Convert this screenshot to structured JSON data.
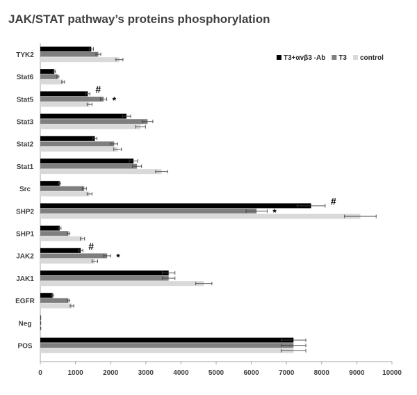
{
  "chart_data": {
    "type": "bar",
    "orientation": "horizontal",
    "title": "JAK/STAT pathway’s proteins phosphorylation",
    "xlabel": "",
    "ylabel": "",
    "xlim": [
      0,
      10000
    ],
    "xticks": [
      0,
      1000,
      2000,
      3000,
      4000,
      5000,
      6000,
      7000,
      8000,
      9000,
      10000
    ],
    "grid": false,
    "legend_position": "top-right",
    "categories": [
      "TYK2",
      "Stat6",
      "Stat5",
      "Stat3",
      "Stat2",
      "Stat1",
      "Src",
      "SHP2",
      "SHP1",
      "JAK2",
      "JAK1",
      "EGFR",
      "Neg",
      "POS"
    ],
    "series": [
      {
        "name": "T3+αvβ3 -Ab",
        "color": "#000000",
        "values": [
          1450,
          400,
          1350,
          2450,
          1550,
          2650,
          550,
          7700,
          550,
          1150,
          3650,
          350,
          10,
          7200
        ],
        "errors": [
          60,
          30,
          60,
          120,
          60,
          120,
          30,
          400,
          40,
          60,
          180,
          30,
          5,
          350
        ]
      },
      {
        "name": "T3",
        "color": "#7f7f7f",
        "values": [
          1650,
          500,
          1800,
          3050,
          2100,
          2750,
          1250,
          6150,
          800,
          1900,
          3650,
          800,
          10,
          7200
        ],
        "errors": [
          70,
          30,
          90,
          150,
          100,
          130,
          60,
          300,
          40,
          100,
          180,
          40,
          5,
          350
        ]
      },
      {
        "name": "control",
        "color": "#d9d9d9",
        "values": [
          2250,
          650,
          1400,
          2850,
          2200,
          3450,
          1400,
          9100,
          1200,
          1550,
          4650,
          900,
          10,
          7200
        ],
        "errors": [
          100,
          40,
          70,
          140,
          110,
          170,
          70,
          450,
          60,
          80,
          230,
          50,
          5,
          350
        ]
      }
    ],
    "annotations": [
      {
        "category": "Stat5",
        "series": 0,
        "text": "#"
      },
      {
        "category": "Stat5",
        "series": 1,
        "text": "*"
      },
      {
        "category": "SHP2",
        "series": 0,
        "text": "#"
      },
      {
        "category": "SHP2",
        "series": 1,
        "text": "*"
      },
      {
        "category": "JAK2",
        "series": 0,
        "text": "#"
      },
      {
        "category": "JAK2",
        "series": 1,
        "text": "*"
      }
    ]
  }
}
